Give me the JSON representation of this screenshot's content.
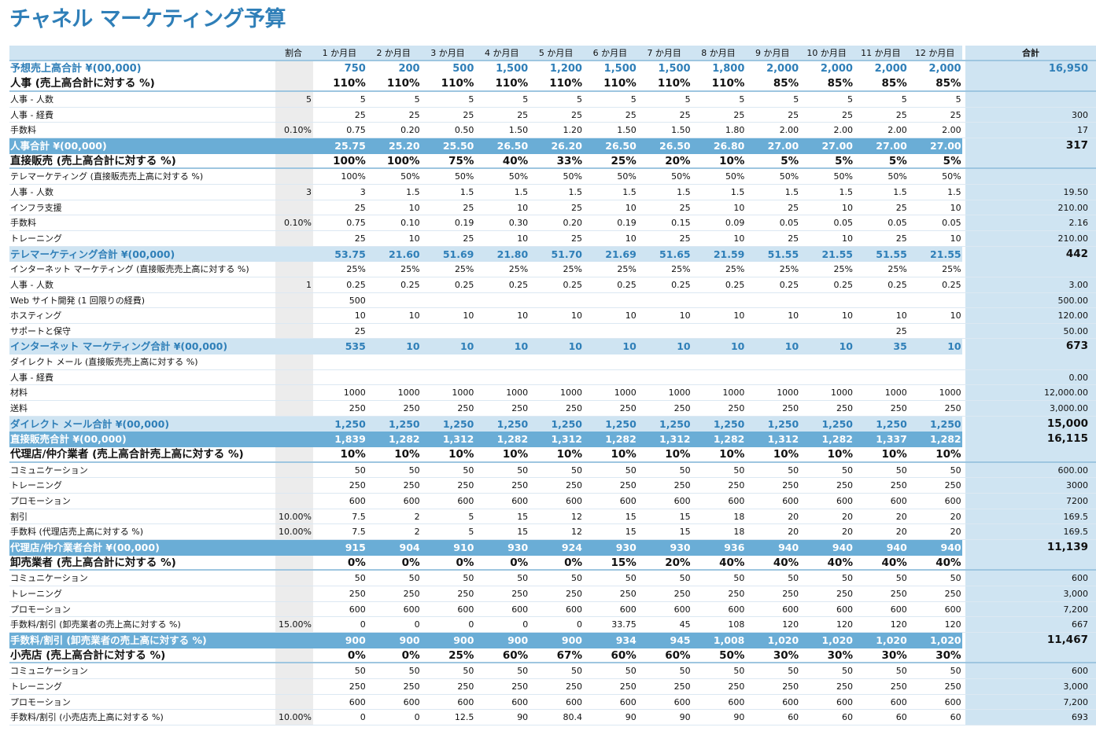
{
  "title": "チャネル マーケティング予算",
  "header": {
    "label": "",
    "pct": "割合",
    "months": [
      "1 か月目",
      "2 か月目",
      "3 か月目",
      "4 か月目",
      "5 か月目",
      "6 か月目",
      "7 か月目",
      "8 か月目",
      "9 か月目",
      "10 か月目",
      "11 か月目",
      "12 か月目"
    ],
    "total": "合計"
  },
  "rows": [
    {
      "type": "forecast",
      "label": "予想売上高合計 ¥(00,000)",
      "pct": "",
      "values": [
        "750",
        "200",
        "500",
        "1,500",
        "1,200",
        "1,500",
        "1,500",
        "1,800",
        "2,000",
        "2,000",
        "2,000",
        "2,000"
      ],
      "total": "16,950"
    },
    {
      "type": "pct",
      "label": "人事 (売上高合計に対する %)",
      "pct": "",
      "values": [
        "110%",
        "110%",
        "110%",
        "110%",
        "110%",
        "110%",
        "110%",
        "110%",
        "85%",
        "85%",
        "85%",
        "85%"
      ],
      "total": ""
    },
    {
      "type": "plain",
      "label": "人事 - 人数",
      "pct": "5",
      "values": [
        "5",
        "5",
        "5",
        "5",
        "5",
        "5",
        "5",
        "5",
        "5",
        "5",
        "5",
        "5"
      ],
      "total": ""
    },
    {
      "type": "plain",
      "label": "人事 - 経費",
      "pct": "",
      "values": [
        "25",
        "25",
        "25",
        "25",
        "25",
        "25",
        "25",
        "25",
        "25",
        "25",
        "25",
        "25"
      ],
      "total": "300"
    },
    {
      "type": "plain",
      "label": "手数料",
      "pct": "0.10%",
      "values": [
        "0.75",
        "0.20",
        "0.50",
        "1.50",
        "1.20",
        "1.50",
        "1.50",
        "1.80",
        "2.00",
        "2.00",
        "2.00",
        "2.00"
      ],
      "total": "17"
    },
    {
      "type": "sub-dark",
      "label": "人事合計 ¥(00,000)",
      "pct": "",
      "values": [
        "25.75",
        "25.20",
        "25.50",
        "26.50",
        "26.20",
        "26.50",
        "26.50",
        "26.80",
        "27.00",
        "27.00",
        "27.00",
        "27.00"
      ],
      "total": "317"
    },
    {
      "type": "pct",
      "label": "直接販売 (売上高合計に対する %)",
      "pct": "",
      "values": [
        "100%",
        "100%",
        "75%",
        "40%",
        "33%",
        "25%",
        "20%",
        "10%",
        "5%",
        "5%",
        "5%",
        "5%"
      ],
      "total": ""
    },
    {
      "type": "plain",
      "label": "テレマーケティング (直接販売売上高に対する %)",
      "pct": "",
      "values": [
        "100%",
        "50%",
        "50%",
        "50%",
        "50%",
        "50%",
        "50%",
        "50%",
        "50%",
        "50%",
        "50%",
        "50%"
      ],
      "total": ""
    },
    {
      "type": "plain",
      "label": "人事 - 人数",
      "pct": "3",
      "values": [
        "3",
        "1.5",
        "1.5",
        "1.5",
        "1.5",
        "1.5",
        "1.5",
        "1.5",
        "1.5",
        "1.5",
        "1.5",
        "1.5"
      ],
      "total": "19.50"
    },
    {
      "type": "plain",
      "label": "インフラ支援",
      "pct": "",
      "values": [
        "25",
        "10",
        "25",
        "10",
        "25",
        "10",
        "25",
        "10",
        "25",
        "10",
        "25",
        "10"
      ],
      "total": "210.00"
    },
    {
      "type": "plain",
      "label": "手数料",
      "pct": "0.10%",
      "values": [
        "0.75",
        "0.10",
        "0.19",
        "0.30",
        "0.20",
        "0.19",
        "0.15",
        "0.09",
        "0.05",
        "0.05",
        "0.05",
        "0.05"
      ],
      "total": "2.16"
    },
    {
      "type": "plain",
      "label": "トレーニング",
      "pct": "",
      "values": [
        "25",
        "10",
        "25",
        "10",
        "25",
        "10",
        "25",
        "10",
        "25",
        "10",
        "25",
        "10"
      ],
      "total": "210.00"
    },
    {
      "type": "sub-light",
      "label": "テレマーケティング合計 ¥(00,000)",
      "pct": "",
      "values": [
        "53.75",
        "21.60",
        "51.69",
        "21.80",
        "51.70",
        "21.69",
        "51.65",
        "21.59",
        "51.55",
        "21.55",
        "51.55",
        "21.55"
      ],
      "total": "442"
    },
    {
      "type": "plain",
      "label": "インターネット マーケティング (直接販売売上高に対する %)",
      "pct": "",
      "values": [
        "25%",
        "25%",
        "25%",
        "25%",
        "25%",
        "25%",
        "25%",
        "25%",
        "25%",
        "25%",
        "25%",
        "25%"
      ],
      "total": ""
    },
    {
      "type": "plain",
      "label": "人事 - 人数",
      "pct": "1",
      "values": [
        "0.25",
        "0.25",
        "0.25",
        "0.25",
        "0.25",
        "0.25",
        "0.25",
        "0.25",
        "0.25",
        "0.25",
        "0.25",
        "0.25"
      ],
      "total": "3.00"
    },
    {
      "type": "plain",
      "label": "Web サイト開発 (1 回限りの経費)",
      "pct": "",
      "values": [
        "500",
        "",
        "",
        "",
        "",
        "",
        "",
        "",
        "",
        "",
        "",
        ""
      ],
      "total": "500.00"
    },
    {
      "type": "plain",
      "label": "ホスティング",
      "pct": "",
      "values": [
        "10",
        "10",
        "10",
        "10",
        "10",
        "10",
        "10",
        "10",
        "10",
        "10",
        "10",
        "10"
      ],
      "total": "120.00"
    },
    {
      "type": "plain",
      "label": "サポートと保守",
      "pct": "",
      "values": [
        "25",
        "",
        "",
        "",
        "",
        "",
        "",
        "",
        "",
        "",
        "25",
        ""
      ],
      "total": "50.00"
    },
    {
      "type": "sub-light",
      "label": "インターネット マーケティング合計 ¥(00,000)",
      "pct": "",
      "values": [
        "535",
        "10",
        "10",
        "10",
        "10",
        "10",
        "10",
        "10",
        "10",
        "10",
        "35",
        "10"
      ],
      "total": "673"
    },
    {
      "type": "plain",
      "label": "ダイレクト メール (直接販売売上高に対する %)",
      "pct": "",
      "values": [
        "",
        "",
        "",
        "",
        "",
        "",
        "",
        "",
        "",
        "",
        "",
        ""
      ],
      "total": ""
    },
    {
      "type": "plain",
      "label": "人事 - 経費",
      "pct": "",
      "values": [
        "",
        "",
        "",
        "",
        "",
        "",
        "",
        "",
        "",
        "",
        "",
        ""
      ],
      "total": "0.00"
    },
    {
      "type": "plain",
      "label": "材料",
      "pct": "",
      "values": [
        "1000",
        "1000",
        "1000",
        "1000",
        "1000",
        "1000",
        "1000",
        "1000",
        "1000",
        "1000",
        "1000",
        "1000"
      ],
      "total": "12,000.00"
    },
    {
      "type": "plain",
      "label": "送料",
      "pct": "",
      "values": [
        "250",
        "250",
        "250",
        "250",
        "250",
        "250",
        "250",
        "250",
        "250",
        "250",
        "250",
        "250"
      ],
      "total": "3,000.00"
    },
    {
      "type": "sub-light",
      "label": "ダイレクト メール合計 ¥(00,000)",
      "pct": "",
      "values": [
        "1,250",
        "1,250",
        "1,250",
        "1,250",
        "1,250",
        "1,250",
        "1,250",
        "1,250",
        "1,250",
        "1,250",
        "1,250",
        "1,250"
      ],
      "total": "15,000"
    },
    {
      "type": "sub-dark",
      "label": "直接販売合計 ¥(00,000)",
      "pct": "",
      "values": [
        "1,839",
        "1,282",
        "1,312",
        "1,282",
        "1,312",
        "1,282",
        "1,312",
        "1,282",
        "1,312",
        "1,282",
        "1,337",
        "1,282"
      ],
      "total": "16,115"
    },
    {
      "type": "pct",
      "label": "代理店/仲介業者 (売上高合計売上高に対する %)",
      "pct": "",
      "values": [
        "10%",
        "10%",
        "10%",
        "10%",
        "10%",
        "10%",
        "10%",
        "10%",
        "10%",
        "10%",
        "10%",
        "10%"
      ],
      "total": ""
    },
    {
      "type": "plain",
      "label": "コミュニケーション",
      "pct": "",
      "values": [
        "50",
        "50",
        "50",
        "50",
        "50",
        "50",
        "50",
        "50",
        "50",
        "50",
        "50",
        "50"
      ],
      "total": "600.00"
    },
    {
      "type": "plain",
      "label": "トレーニング",
      "pct": "",
      "values": [
        "250",
        "250",
        "250",
        "250",
        "250",
        "250",
        "250",
        "250",
        "250",
        "250",
        "250",
        "250"
      ],
      "total": "3000"
    },
    {
      "type": "plain",
      "label": "プロモーション",
      "pct": "",
      "values": [
        "600",
        "600",
        "600",
        "600",
        "600",
        "600",
        "600",
        "600",
        "600",
        "600",
        "600",
        "600"
      ],
      "total": "7200"
    },
    {
      "type": "plain",
      "label": "割引",
      "pct": "10.00%",
      "values": [
        "7.5",
        "2",
        "5",
        "15",
        "12",
        "15",
        "15",
        "18",
        "20",
        "20",
        "20",
        "20"
      ],
      "total": "169.5"
    },
    {
      "type": "plain",
      "label": "手数料 (代理店売上高に対する %)",
      "pct": "10.00%",
      "values": [
        "7.5",
        "2",
        "5",
        "15",
        "12",
        "15",
        "15",
        "18",
        "20",
        "20",
        "20",
        "20"
      ],
      "total": "169.5"
    },
    {
      "type": "sub-dark",
      "label": "代理店/仲介業者合計 ¥(00,000)",
      "pct": "",
      "values": [
        "915",
        "904",
        "910",
        "930",
        "924",
        "930",
        "930",
        "936",
        "940",
        "940",
        "940",
        "940"
      ],
      "total": "11,139"
    },
    {
      "type": "pct",
      "label": "卸売業者 (売上高合計に対する %)",
      "pct": "",
      "values": [
        "0%",
        "0%",
        "0%",
        "0%",
        "0%",
        "15%",
        "20%",
        "40%",
        "40%",
        "40%",
        "40%",
        "40%"
      ],
      "total": ""
    },
    {
      "type": "plain",
      "label": "コミュニケーション",
      "pct": "",
      "values": [
        "50",
        "50",
        "50",
        "50",
        "50",
        "50",
        "50",
        "50",
        "50",
        "50",
        "50",
        "50"
      ],
      "total": "600"
    },
    {
      "type": "plain",
      "label": "トレーニング",
      "pct": "",
      "values": [
        "250",
        "250",
        "250",
        "250",
        "250",
        "250",
        "250",
        "250",
        "250",
        "250",
        "250",
        "250"
      ],
      "total": "3,000"
    },
    {
      "type": "plain",
      "label": "プロモーション",
      "pct": "",
      "values": [
        "600",
        "600",
        "600",
        "600",
        "600",
        "600",
        "600",
        "600",
        "600",
        "600",
        "600",
        "600"
      ],
      "total": "7,200"
    },
    {
      "type": "plain",
      "label": "手数料/割引 (卸売業者の売上高に対する %)",
      "pct": "15.00%",
      "values": [
        "0",
        "0",
        "0",
        "0",
        "0",
        "33.75",
        "45",
        "108",
        "120",
        "120",
        "120",
        "120"
      ],
      "total": "667"
    },
    {
      "type": "sub-dark",
      "label": "手数料/割引 (卸売業者の売上高に対する %)",
      "pct": "",
      "values": [
        "900",
        "900",
        "900",
        "900",
        "900",
        "934",
        "945",
        "1,008",
        "1,020",
        "1,020",
        "1,020",
        "1,020"
      ],
      "total": "11,467"
    },
    {
      "type": "pct",
      "label": "小売店 (売上高合計に対する %)",
      "pct": "",
      "values": [
        "0%",
        "0%",
        "25%",
        "60%",
        "67%",
        "60%",
        "60%",
        "50%",
        "30%",
        "30%",
        "30%",
        "30%"
      ],
      "total": ""
    },
    {
      "type": "plain",
      "label": "コミュニケーション",
      "pct": "",
      "values": [
        "50",
        "50",
        "50",
        "50",
        "50",
        "50",
        "50",
        "50",
        "50",
        "50",
        "50",
        "50"
      ],
      "total": "600"
    },
    {
      "type": "plain",
      "label": "トレーニング",
      "pct": "",
      "values": [
        "250",
        "250",
        "250",
        "250",
        "250",
        "250",
        "250",
        "250",
        "250",
        "250",
        "250",
        "250"
      ],
      "total": "3,000"
    },
    {
      "type": "plain",
      "label": "プロモーション",
      "pct": "",
      "values": [
        "600",
        "600",
        "600",
        "600",
        "600",
        "600",
        "600",
        "600",
        "600",
        "600",
        "600",
        "600"
      ],
      "total": "7,200"
    },
    {
      "type": "plain",
      "label": "手数料/割引 (小売店売上高に対する %)",
      "pct": "10.00%",
      "values": [
        "0",
        "0",
        "12.5",
        "90",
        "80.4",
        "90",
        "90",
        "90",
        "60",
        "60",
        "60",
        "60"
      ],
      "total": "693"
    }
  ]
}
